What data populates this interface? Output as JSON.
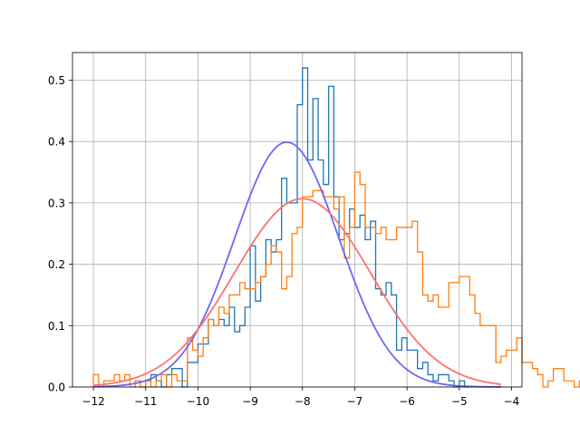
{
  "chart_data": {
    "type": "step-histogram-with-fit",
    "title": "",
    "xlabel": "",
    "ylabel": "",
    "xlim": [
      -12.4,
      -3.8
    ],
    "ylim": [
      0.0,
      0.545
    ],
    "grid": true,
    "xticks": [
      -12,
      -11,
      -10,
      -9,
      -8,
      -7,
      -6,
      -5,
      -4
    ],
    "xtick_labels": [
      "−12",
      "−11",
      "−10",
      "−9",
      "−8",
      "−7",
      "−6",
      "−5",
      "−4"
    ],
    "yticks": [
      0.0,
      0.1,
      0.2,
      0.3,
      0.4,
      0.5
    ],
    "ytick_labels": [
      "0.0",
      "0.1",
      "0.2",
      "0.3",
      "0.4",
      "0.5"
    ],
    "series": [
      {
        "kind": "step",
        "color": "#1f77b4",
        "bin_start": -11.1,
        "bin_width": 0.1,
        "values": [
          0.0,
          0.01,
          0.02,
          0.01,
          0.0,
          0.02,
          0.03,
          0.03,
          0.0,
          0.04,
          0.04,
          0.07,
          0.07,
          0.11,
          0.1,
          0.11,
          0.1,
          0.13,
          0.09,
          0.1,
          0.13,
          0.23,
          0.14,
          0.18,
          0.24,
          0.22,
          0.24,
          0.34,
          0.3,
          0.3,
          0.46,
          0.52,
          0.37,
          0.47,
          0.37,
          0.33,
          0.49,
          0.31,
          0.24,
          0.25,
          0.29,
          0.26,
          0.28,
          0.24,
          0.27,
          0.16,
          0.15,
          0.17,
          0.15,
          0.06,
          0.08,
          0.06,
          0.06,
          0.03,
          0.04,
          0.02,
          0.01,
          0.02,
          0.02,
          0.01,
          0.0,
          0.01,
          0.0
        ]
      },
      {
        "kind": "step",
        "color": "#ff7f0e",
        "bin_start": -12.0,
        "bin_width": 0.1,
        "values": [
          0.02,
          0.0,
          0.01,
          0.01,
          0.02,
          0.01,
          0.02,
          0.0,
          0.01,
          0.0,
          0.01,
          0.0,
          0.01,
          0.02,
          0.0,
          0.02,
          0.01,
          0.01,
          0.08,
          0.06,
          0.05,
          0.08,
          0.11,
          0.1,
          0.13,
          0.12,
          0.15,
          0.15,
          0.17,
          0.16,
          0.16,
          0.17,
          0.18,
          0.2,
          0.23,
          0.22,
          0.16,
          0.18,
          0.25,
          0.26,
          0.31,
          0.31,
          0.32,
          0.32,
          0.31,
          0.31,
          0.29,
          0.31,
          0.21,
          0.26,
          0.35,
          0.33,
          0.26,
          0.26,
          0.25,
          0.26,
          0.24,
          0.24,
          0.26,
          0.26,
          0.26,
          0.27,
          0.22,
          0.15,
          0.14,
          0.15,
          0.13,
          0.13,
          0.17,
          0.17,
          0.18,
          0.18,
          0.15,
          0.12,
          0.1,
          0.1,
          0.1,
          0.04,
          0.05,
          0.06,
          0.06,
          0.08,
          0.04,
          0.04,
          0.03,
          0.02,
          0.0,
          0.01,
          0.03,
          0.03,
          0.01,
          0.01,
          0.0,
          0.01,
          0.01
        ]
      },
      {
        "kind": "gaussian",
        "color": "#6a6af0",
        "mu": -8.3,
        "sigma": 1.0,
        "x_range": [
          -12.0,
          -4.2
        ]
      },
      {
        "kind": "gaussian",
        "color": "#ff7070",
        "mu": -8.0,
        "sigma": 1.3,
        "x_range": [
          -12.0,
          -4.2
        ]
      }
    ]
  }
}
